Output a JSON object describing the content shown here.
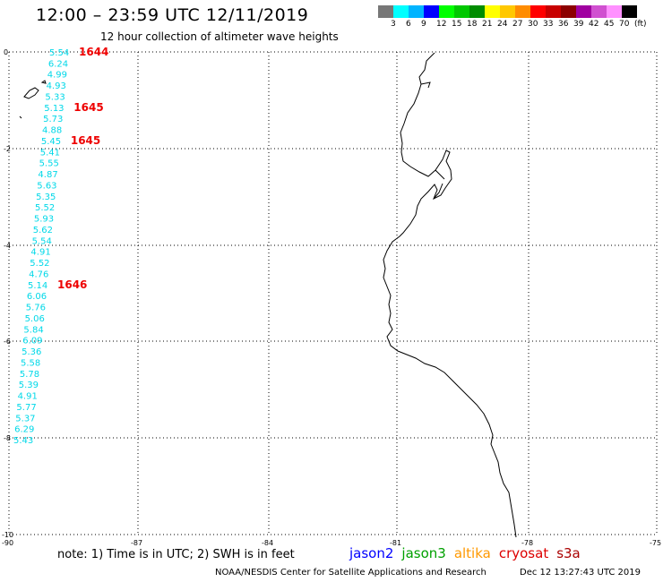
{
  "header": {
    "title": "12:00 – 23:59 UTC 12/11/2019",
    "subtitle": "12 hour collection of altimeter wave heights"
  },
  "scale": {
    "colors": [
      "#777777",
      "#00ffff",
      "#00b4ff",
      "#0000ff",
      "#00ff00",
      "#00c800",
      "#008c00",
      "#ffff00",
      "#ffc800",
      "#ff8c00",
      "#ff0000",
      "#c80000",
      "#8c0000",
      "#a000a0",
      "#d050d0",
      "#ff90ff",
      "#000000"
    ],
    "labels": [
      "3",
      "6",
      "9",
      "12",
      "15",
      "18",
      "21",
      "24",
      "27",
      "30",
      "33",
      "36",
      "39",
      "42",
      "45",
      "70",
      "(ft)"
    ]
  },
  "axes": {
    "y_ticks": [
      "0",
      "-2",
      "-4",
      "-6",
      "-8",
      "-10"
    ],
    "x_ticks": [
      "-90",
      "-87",
      "-84",
      "-81",
      "-78",
      "-75"
    ]
  },
  "wave_heights": [
    "5.54",
    "6.24",
    "4.99",
    "4.93",
    "5.33",
    "5.13",
    "5.73",
    "4.88",
    "5.45",
    "5.41",
    "5.55",
    "4.87",
    "5.63",
    "5.35",
    "5.52",
    "5.93",
    "5.62",
    "5.54",
    "4.91",
    "5.52",
    "4.76",
    "5.14",
    "6.06",
    "5.76",
    "5.06",
    "5.84",
    "6.09",
    "5.36",
    "5.58",
    "5.78",
    "5.39",
    "4.91",
    "5.77",
    "5.37",
    "6.29",
    "5.43"
  ],
  "pass_times": [
    "1644",
    "1645",
    "1645",
    "1646"
  ],
  "note": "note:  1) Time is in UTC;  2) SWH is in feet",
  "legend": {
    "items": [
      {
        "label": "jason2",
        "color": "#0000ff"
      },
      {
        "label": "jason3",
        "color": "#00a000"
      },
      {
        "label": "altika",
        "color": "#ff9900"
      },
      {
        "label": "cryosat",
        "color": "#dd0000"
      },
      {
        "label": "s3a",
        "color": "#aa0000"
      }
    ]
  },
  "footer": {
    "credit": "NOAA/NESDIS Center for Satellite Applications and Research",
    "datetime": "Dec 12 13:27:43 UTC 2019"
  }
}
